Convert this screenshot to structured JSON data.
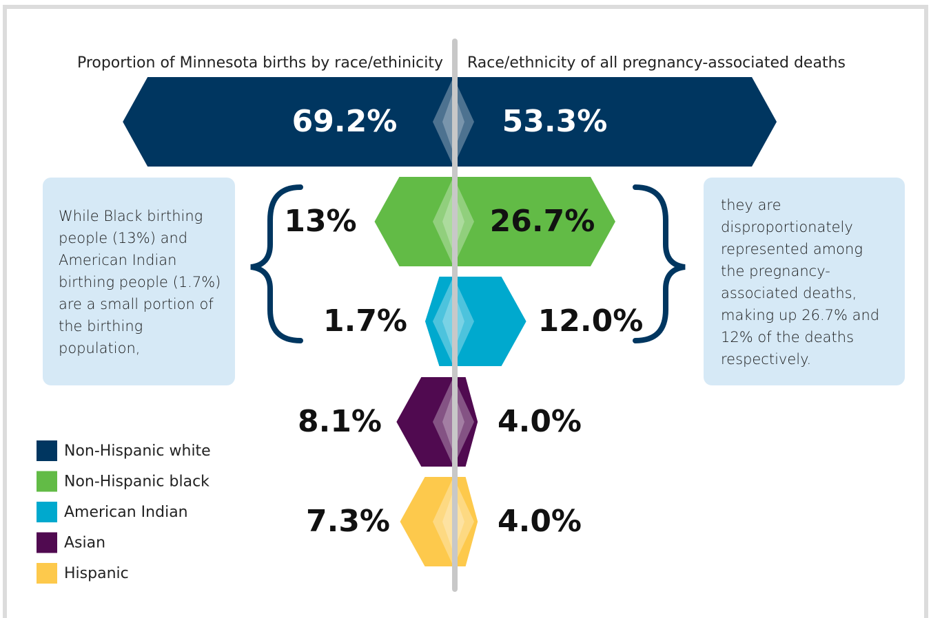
{
  "chart_data": {
    "type": "butterfly",
    "categories": [
      "Non-Hispanic white",
      "Non-Hispanic black",
      "American Indian",
      "Asian",
      "Hispanic"
    ],
    "colors": [
      "#003660",
      "#62bb46",
      "#00a9ce",
      "#500a50",
      "#fdc94c"
    ],
    "series": [
      {
        "name": "Proportion of Minnesota births by race/ethinicity",
        "values": [
          69.2,
          13,
          1.7,
          8.1,
          7.3
        ],
        "value_labels": [
          "69.2%",
          "13%",
          "1.7%",
          "8.1%",
          "7.3%"
        ]
      },
      {
        "name": "Race/ethnicity of all pregnancy-associated deaths",
        "values": [
          53.3,
          26.7,
          12,
          4,
          4
        ],
        "value_labels": [
          "53.3%",
          "26.7%",
          "12.0%",
          "4.0%",
          "4.0%"
        ]
      }
    ],
    "annotations": [
      "While Black birthing people (13%) and American Indian birthing people (1.7%) are a small portion of the birthing population,",
      "they are disproportionately represented among the pregnancy-associated deaths, making up 26.7% and 12% of the deaths respectively."
    ]
  }
}
